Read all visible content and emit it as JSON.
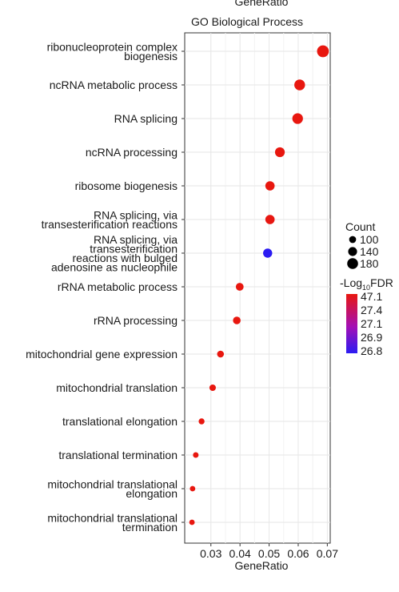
{
  "chart_data": {
    "type": "scatter",
    "title": "GO Biological Process",
    "top_label": "GeneRatio",
    "xlabel": "GeneRatio",
    "ylabel": "",
    "xlim": [
      0.021,
      0.071
    ],
    "x_ticks": [
      0.03,
      0.04,
      0.05,
      0.06,
      0.07
    ],
    "x_tick_labels": [
      "0.03",
      "0.04",
      "0.05",
      "0.06",
      "0.07"
    ],
    "grid": true,
    "legend_position": "right",
    "terms": [
      {
        "lines": [
          "ribonucleoprotein complex",
          "biogenesis"
        ],
        "gene_ratio": 0.0685,
        "count": 200,
        "log10_fdr": 47.1
      },
      {
        "lines": [
          "ncRNA metabolic process"
        ],
        "gene_ratio": 0.0605,
        "count": 178,
        "log10_fdr": 47.1
      },
      {
        "lines": [
          "RNA splicing"
        ],
        "gene_ratio": 0.0598,
        "count": 175,
        "log10_fdr": 47.1
      },
      {
        "lines": [
          "ncRNA processing"
        ],
        "gene_ratio": 0.0537,
        "count": 158,
        "log10_fdr": 47.1
      },
      {
        "lines": [
          "ribosome biogenesis"
        ],
        "gene_ratio": 0.0503,
        "count": 148,
        "log10_fdr": 47.1
      },
      {
        "lines": [
          "RNA splicing, via",
          "transesterification reactions"
        ],
        "gene_ratio": 0.0503,
        "count": 148,
        "log10_fdr": 47.0
      },
      {
        "lines": [
          "RNA splicing, via",
          "transesterification",
          "reactions with bulged",
          "adenosine as nucleophile"
        ],
        "gene_ratio": 0.0495,
        "count": 145,
        "log10_fdr": 26.8
      },
      {
        "lines": [
          "rRNA metabolic process"
        ],
        "gene_ratio": 0.0399,
        "count": 117,
        "log10_fdr": 47.1
      },
      {
        "lines": [
          "rRNA processing"
        ],
        "gene_ratio": 0.0389,
        "count": 114,
        "log10_fdr": 47.1
      },
      {
        "lines": [
          "mitochondrial gene expression"
        ],
        "gene_ratio": 0.0333,
        "count": 98,
        "log10_fdr": 47.1
      },
      {
        "lines": [
          "mitochondrial translation"
        ],
        "gene_ratio": 0.0306,
        "count": 90,
        "log10_fdr": 47.1
      },
      {
        "lines": [
          "translational elongation"
        ],
        "gene_ratio": 0.0268,
        "count": 79,
        "log10_fdr": 47.1
      },
      {
        "lines": [
          "translational termination"
        ],
        "gene_ratio": 0.0248,
        "count": 73,
        "log10_fdr": 47.1
      },
      {
        "lines": [
          "mitochondrial translational",
          "elongation"
        ],
        "gene_ratio": 0.0237,
        "count": 70,
        "log10_fdr": 47.1
      },
      {
        "lines": [
          "mitochondrial translational",
          "termination"
        ],
        "gene_ratio": 0.0235,
        "count": 69,
        "log10_fdr": 47.1
      }
    ],
    "size_legend": {
      "title": "Count",
      "values": [
        100,
        140,
        180
      ],
      "labels": [
        "100",
        "140",
        "180"
      ]
    },
    "color_legend": {
      "title_prefix": "-Log",
      "title_sub": "10",
      "title_suffix": "FDR",
      "labels": [
        "47.1",
        "27.4",
        "27.1",
        "26.9",
        "26.8"
      ],
      "color_high": "#E8170F",
      "color_mid": "#A40FB5",
      "color_low": "#2B1BF2"
    }
  }
}
